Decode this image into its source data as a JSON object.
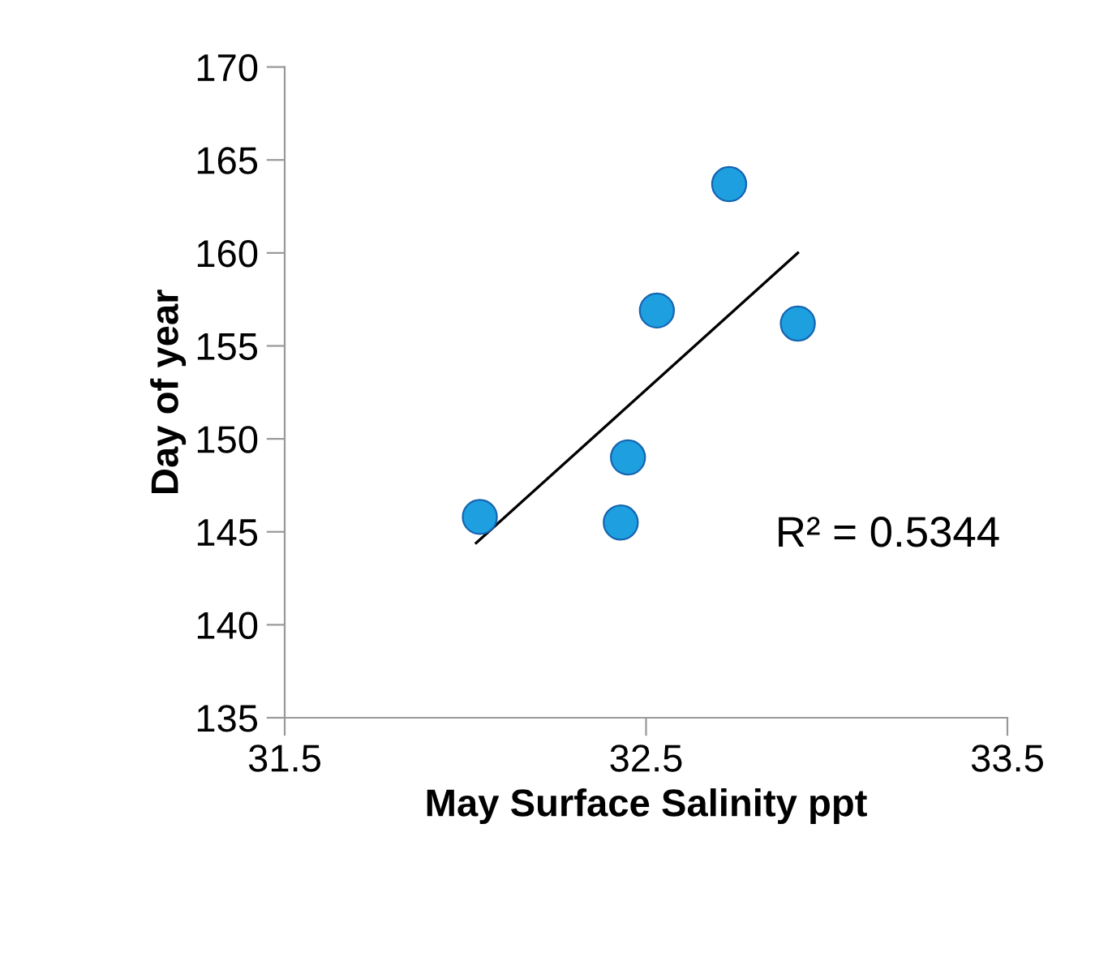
{
  "chart_data": {
    "type": "scatter",
    "xlabel": "May Surface Salinity ppt",
    "ylabel": "Day of year",
    "series": [
      {
        "marker": "circle",
        "color": "#1ea0e0",
        "x": [
          32.04,
          32.43,
          32.45,
          32.53,
          32.73,
          32.92
        ],
        "values": [
          145.8,
          145.5,
          149.0,
          156.9,
          163.7,
          156.2
        ]
      },
      {
        "type": "line",
        "marker": "none",
        "color": "#000000",
        "x": [
          32.03,
          32.92
        ],
        "values": [
          144.4,
          160.0
        ]
      }
    ],
    "annotations": [
      "R² = 0.5344"
    ],
    "xlim": [
      31.5,
      33.5
    ],
    "xticks": [
      31.5,
      32.5,
      33.5
    ],
    "ylim": [
      135,
      170
    ],
    "yticks": [
      135,
      140,
      145,
      150,
      155,
      160,
      165,
      170
    ],
    "grid": false,
    "legend": false
  }
}
